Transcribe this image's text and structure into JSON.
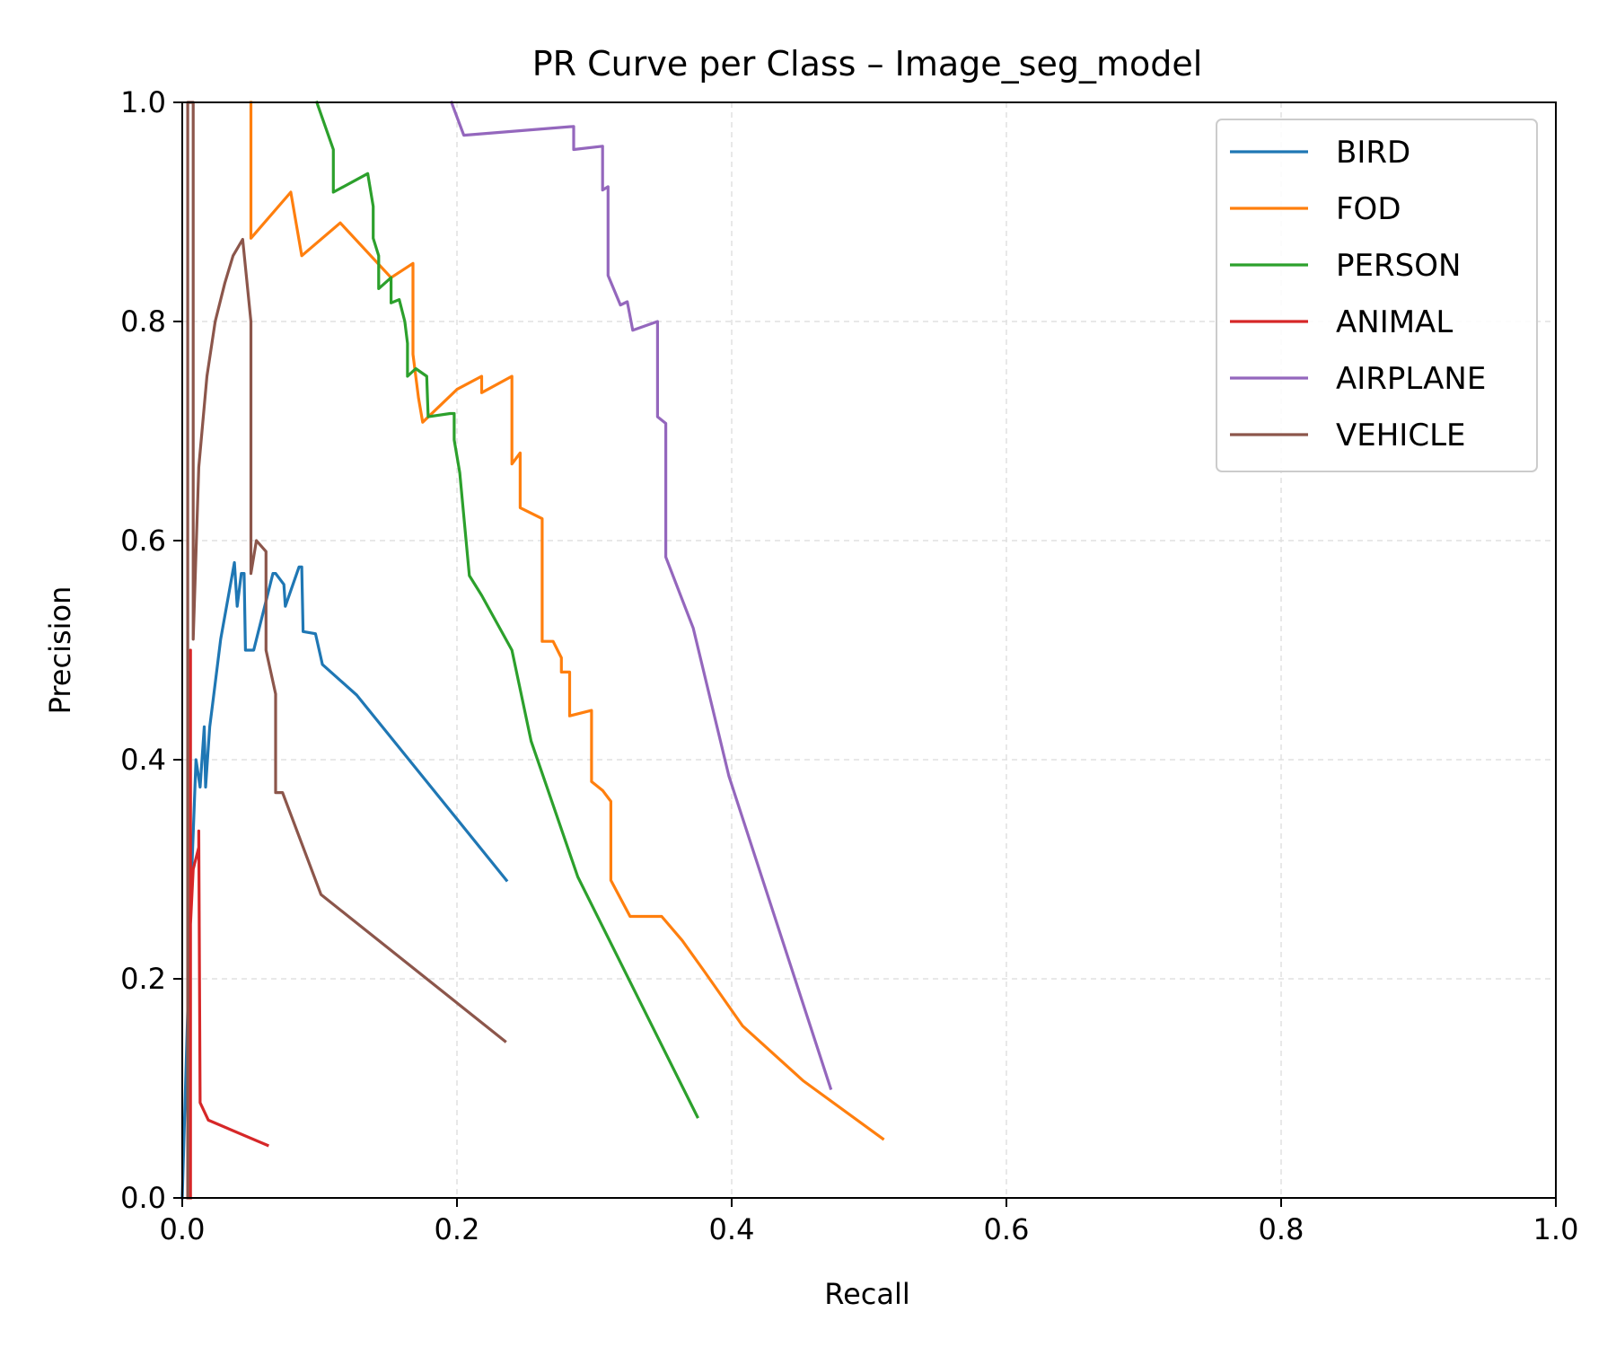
{
  "chart_data": {
    "type": "line",
    "title": "PR Curve per Class – Image_seg_model",
    "xlabel": "Recall",
    "ylabel": "Precision",
    "xlim": [
      0,
      1
    ],
    "ylim": [
      0,
      1
    ],
    "xticks": [
      "0.0",
      "0.2",
      "0.4",
      "0.6",
      "0.8",
      "1.0"
    ],
    "yticks": [
      "0.0",
      "0.2",
      "0.4",
      "0.6",
      "0.8",
      "1.0"
    ],
    "xtick_values": [
      0,
      0.2,
      0.4,
      0.6,
      0.8,
      1.0
    ],
    "ytick_values": [
      0,
      0.2,
      0.4,
      0.6,
      0.8,
      1.0
    ],
    "grid": true,
    "legend_position": "top-right",
    "series": [
      {
        "name": "BIRD",
        "color": "#1f77b4",
        "x": [
          0.0,
          0.007,
          0.01,
          0.013,
          0.016,
          0.017,
          0.02,
          0.022,
          0.028,
          0.038,
          0.04,
          0.043,
          0.045,
          0.046,
          0.048,
          0.052,
          0.066,
          0.068,
          0.074,
          0.075,
          0.085,
          0.087,
          0.088,
          0.097,
          0.102,
          0.127,
          0.236
        ],
        "y": [
          0.0,
          0.3,
          0.4,
          0.375,
          0.43,
          0.375,
          0.43,
          0.45,
          0.51,
          0.58,
          0.54,
          0.57,
          0.57,
          0.5,
          0.5,
          0.5,
          0.57,
          0.57,
          0.56,
          0.54,
          0.576,
          0.576,
          0.517,
          0.515,
          0.487,
          0.459,
          0.29
        ]
      },
      {
        "name": "FOD",
        "color": "#ff7f0e",
        "x": [
          0.05,
          0.05,
          0.079,
          0.087,
          0.115,
          0.152,
          0.168,
          0.168,
          0.172,
          0.175,
          0.2,
          0.218,
          0.218,
          0.24,
          0.24,
          0.246,
          0.246,
          0.262,
          0.262,
          0.27,
          0.276,
          0.276,
          0.282,
          0.282,
          0.298,
          0.298,
          0.306,
          0.312,
          0.312,
          0.326,
          0.349,
          0.364,
          0.38,
          0.408,
          0.452,
          0.51
        ],
        "y": [
          1.0,
          0.876,
          0.918,
          0.86,
          0.89,
          0.84,
          0.853,
          0.77,
          0.73,
          0.708,
          0.738,
          0.75,
          0.735,
          0.75,
          0.67,
          0.68,
          0.63,
          0.62,
          0.508,
          0.508,
          0.493,
          0.48,
          0.48,
          0.44,
          0.445,
          0.38,
          0.372,
          0.362,
          0.29,
          0.257,
          0.257,
          0.235,
          0.207,
          0.157,
          0.107,
          0.054
        ]
      },
      {
        "name": "PERSON",
        "color": "#2ca02c",
        "x": [
          0.098,
          0.11,
          0.11,
          0.135,
          0.139,
          0.139,
          0.143,
          0.143,
          0.152,
          0.152,
          0.158,
          0.162,
          0.164,
          0.164,
          0.17,
          0.178,
          0.179,
          0.195,
          0.198,
          0.198,
          0.202,
          0.209,
          0.218,
          0.24,
          0.254,
          0.288,
          0.375
        ],
        "y": [
          1.0,
          0.957,
          0.918,
          0.935,
          0.905,
          0.876,
          0.86,
          0.83,
          0.84,
          0.817,
          0.82,
          0.8,
          0.78,
          0.75,
          0.757,
          0.75,
          0.713,
          0.716,
          0.716,
          0.692,
          0.662,
          0.568,
          0.55,
          0.5,
          0.417,
          0.293,
          0.074
        ]
      },
      {
        "name": "ANIMAL",
        "color": "#d62728",
        "x": [
          0.006,
          0.006,
          0.006,
          0.008,
          0.012,
          0.012,
          0.013,
          0.019,
          0.062
        ],
        "y": [
          0.0,
          0.5,
          0.25,
          0.3,
          0.32,
          0.335,
          0.087,
          0.071,
          0.048
        ]
      },
      {
        "name": "AIRPLANE",
        "color": "#9467bd",
        "x": [
          0.196,
          0.205,
          0.285,
          0.285,
          0.306,
          0.306,
          0.31,
          0.31,
          0.319,
          0.324,
          0.328,
          0.328,
          0.346,
          0.346,
          0.352,
          0.352,
          0.372,
          0.398,
          0.472
        ],
        "y": [
          1.0,
          0.97,
          0.978,
          0.957,
          0.96,
          0.92,
          0.923,
          0.842,
          0.815,
          0.818,
          0.792,
          0.792,
          0.8,
          0.713,
          0.707,
          0.585,
          0.52,
          0.385,
          0.1
        ]
      },
      {
        "name": "VEHICLE",
        "color": "#8c564b",
        "x": [
          0.004,
          0.004,
          0.008,
          0.008,
          0.012,
          0.018,
          0.024,
          0.031,
          0.037,
          0.044,
          0.05,
          0.05,
          0.054,
          0.061,
          0.061,
          0.068,
          0.068,
          0.073,
          0.101,
          0.235
        ],
        "y": [
          0.0,
          1.0,
          1.0,
          0.51,
          0.667,
          0.75,
          0.8,
          0.835,
          0.86,
          0.875,
          0.8,
          0.57,
          0.6,
          0.59,
          0.5,
          0.46,
          0.37,
          0.37,
          0.277,
          0.143
        ]
      }
    ]
  }
}
